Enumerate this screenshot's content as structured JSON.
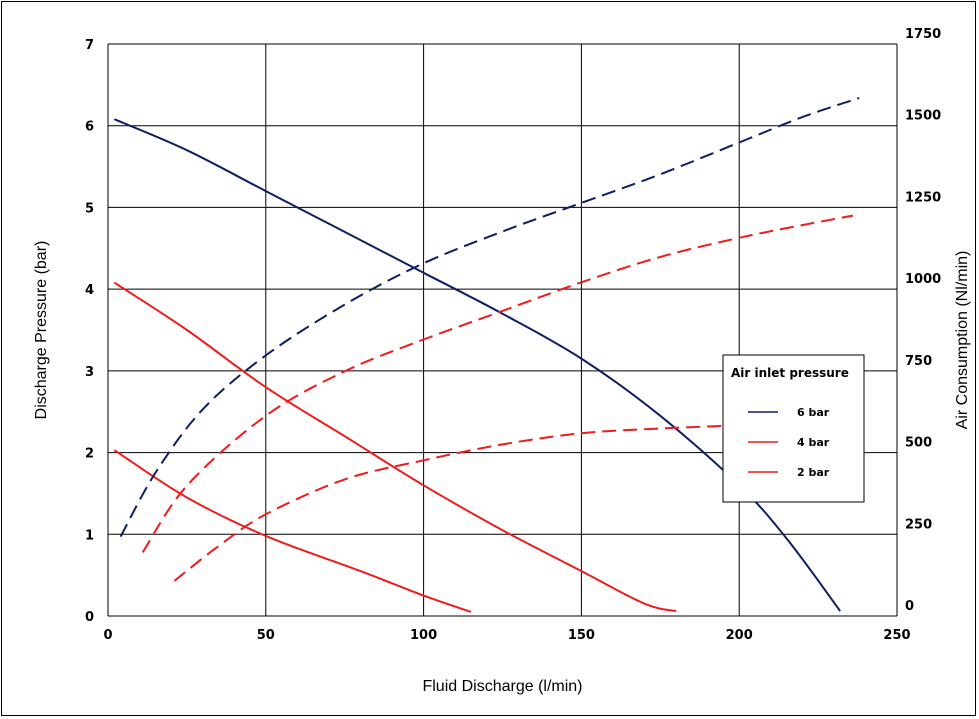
{
  "chart_data": {
    "type": "line",
    "xlabel": "Fluid Discharge (l/min)",
    "ylabel": "Discharge Pressure (bar)",
    "y2label": "Air Consumption (Nl/min)",
    "xlim": [
      0,
      250
    ],
    "ylim": [
      0,
      7
    ],
    "y2lim": [
      -50,
      1750
    ],
    "xticks": [
      "0",
      "50",
      "100",
      "150",
      "200",
      "250"
    ],
    "yticks": [
      "0",
      "1",
      "2",
      "3",
      "4",
      "5",
      "6",
      "7"
    ],
    "y2ticks": [
      "0",
      "250",
      "500",
      "750",
      "1000",
      "1250",
      "1500",
      "1750"
    ],
    "grid": true,
    "legend": {
      "title": "Air inlet pressure",
      "placement": "right",
      "entries": [
        {
          "label": "6 bar",
          "color": "#0d1f63"
        },
        {
          "label": "4 bar",
          "color": "#ee1c1c"
        },
        {
          "label": "2 bar",
          "color": "#ee1c1c"
        }
      ]
    },
    "series": [
      {
        "name": "6 bar",
        "axis": "left",
        "style": "solid",
        "color": "#0d1f63",
        "x": [
          2,
          25,
          50,
          75,
          100,
          125,
          150,
          175,
          200,
          215,
          232
        ],
        "y": [
          6.08,
          5.7,
          5.2,
          4.7,
          4.2,
          3.7,
          3.15,
          2.45,
          1.6,
          0.95,
          0.06
        ]
      },
      {
        "name": "4 bar",
        "axis": "left",
        "style": "solid",
        "color": "#ee1c1c",
        "x": [
          2,
          25,
          50,
          75,
          100,
          125,
          150,
          170,
          180
        ],
        "y": [
          4.08,
          3.5,
          2.8,
          2.2,
          1.6,
          1.05,
          0.55,
          0.15,
          0.06
        ]
      },
      {
        "name": "2 bar",
        "axis": "left",
        "style": "solid",
        "color": "#ee1c1c",
        "x": [
          2,
          25,
          50,
          80,
          100,
          115
        ],
        "y": [
          2.03,
          1.45,
          0.98,
          0.55,
          0.25,
          0.05
        ]
      },
      {
        "name": "6 bar",
        "axis": "right",
        "style": "dashed",
        "color": "#0d1f63",
        "x": [
          4,
          15,
          30,
          50,
          75,
          100,
          125,
          150,
          175,
          200,
          220,
          238
        ],
        "y": [
          200,
          400,
          600,
          770,
          930,
          1060,
          1160,
          1250,
          1340,
          1440,
          1520,
          1580
        ]
      },
      {
        "name": "4 bar",
        "axis": "right",
        "style": "dashed",
        "color": "#ee1c1c",
        "x": [
          11,
          25,
          50,
          75,
          100,
          125,
          150,
          175,
          200,
          220,
          236
        ],
        "y": [
          150,
          360,
          580,
          720,
          820,
          910,
          1000,
          1080,
          1140,
          1180,
          1210
        ]
      },
      {
        "name": "2 bar",
        "axis": "right",
        "style": "dashed",
        "color": "#ee1c1c",
        "x": [
          21,
          35,
          50,
          75,
          100,
          125,
          150,
          175,
          200
        ],
        "y": [
          60,
          170,
          270,
          380,
          440,
          490,
          525,
          540,
          550
        ]
      }
    ]
  }
}
